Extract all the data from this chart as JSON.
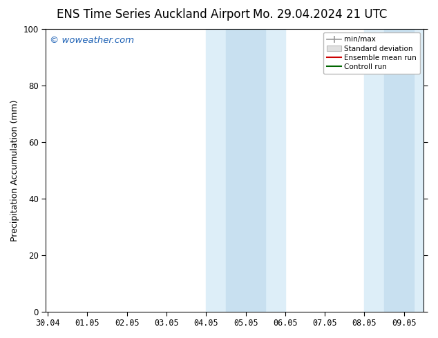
{
  "title_left": "ENS Time Series Auckland Airport",
  "title_right": "Mo. 29.04.2024 21 UTC",
  "ylabel": "Precipitation Accumulation (mm)",
  "ylim": [
    0,
    100
  ],
  "yticks": [
    0,
    20,
    40,
    60,
    80,
    100
  ],
  "xtick_labels": [
    "30.04",
    "01.05",
    "02.05",
    "03.05",
    "04.05",
    "05.05",
    "06.05",
    "07.05",
    "08.05",
    "09.05"
  ],
  "xtick_positions": [
    0,
    1,
    2,
    3,
    4,
    5,
    6,
    7,
    8,
    9
  ],
  "xlim": [
    -0.05,
    9.5
  ],
  "watermark": "© woweather.com",
  "watermark_color": "#1a5fb4",
  "shaded_bands": [
    {
      "x_start": 4.0,
      "x_end": 5.0,
      "color": "#ddeef8"
    },
    {
      "x_start": 5.0,
      "x_end": 6.0,
      "color": "#ddeef8"
    },
    {
      "x_start": 8.0,
      "x_end": 9.0,
      "color": "#ddeef8"
    },
    {
      "x_start": 9.0,
      "x_end": 9.5,
      "color": "#ddeef8"
    }
  ],
  "shaded_band2": [
    {
      "x_start": 4.5,
      "x_end": 5.0,
      "color": "#c8e0f0"
    },
    {
      "x_start": 5.0,
      "x_end": 5.5,
      "color": "#c8e0f0"
    },
    {
      "x_start": 8.5,
      "x_end": 9.0,
      "color": "#c8e0f0"
    },
    {
      "x_start": 9.0,
      "x_end": 9.25,
      "color": "#c8e0f0"
    }
  ],
  "legend_entries": [
    {
      "label": "min/max",
      "color": "#999999",
      "lw": 1.2
    },
    {
      "label": "Standard deviation",
      "color": "#cccccc",
      "lw": 5
    },
    {
      "label": "Ensemble mean run",
      "color": "#cc0000",
      "lw": 1.5
    },
    {
      "label": "Controll run",
      "color": "#006600",
      "lw": 1.5
    }
  ],
  "background_color": "#ffffff",
  "title_fontsize": 12,
  "label_fontsize": 9,
  "tick_fontsize": 8.5
}
